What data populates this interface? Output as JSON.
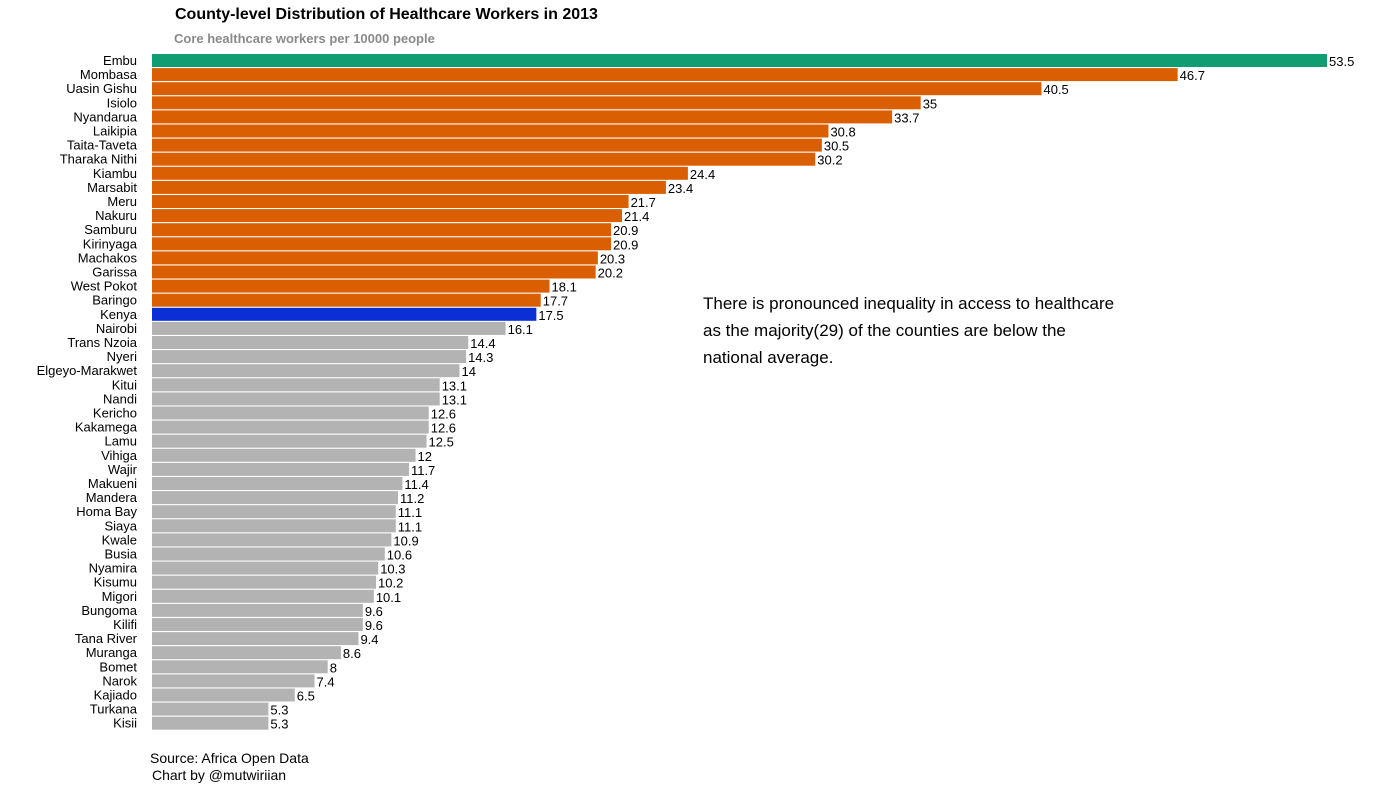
{
  "chart_data": {
    "type": "bar",
    "orientation": "horizontal",
    "title": "County-level Distribution of Healthcare Workers in 2013",
    "subtitle": "Core healthcare workers per 10000 people",
    "xlabel": "",
    "ylabel": "",
    "grid": false,
    "xlim": [
      0,
      53.5
    ],
    "categories": [
      "Embu",
      "Mombasa",
      "Uasin Gishu",
      "Isiolo",
      "Nyandarua",
      "Laikipia",
      "Taita-Taveta",
      "Tharaka Nithi",
      "Kiambu",
      "Marsabit",
      "Meru",
      "Nakuru",
      "Samburu",
      "Kirinyaga",
      "Machakos",
      "Garissa",
      "West Pokot",
      "Baringo",
      "Kenya",
      "Nairobi",
      "Trans Nzoia",
      "Nyeri",
      "Elgeyo-Marakwet",
      "Kitui",
      "Nandi",
      "Kericho",
      "Kakamega",
      "Lamu",
      "Vihiga",
      "Wajir",
      "Makueni",
      "Mandera",
      "Homa Bay",
      "Siaya",
      "Kwale",
      "Busia",
      "Nyamira",
      "Kisumu",
      "Migori",
      "Bungoma",
      "Kilifi",
      "Tana River",
      "Muranga",
      "Bomet",
      "Narok",
      "Kajiado",
      "Turkana",
      "Kisii"
    ],
    "values": [
      53.5,
      46.7,
      40.5,
      35,
      33.7,
      30.8,
      30.5,
      30.2,
      24.4,
      23.4,
      21.7,
      21.4,
      20.9,
      20.9,
      20.3,
      20.2,
      18.1,
      17.7,
      17.5,
      16.1,
      14.4,
      14.3,
      14,
      13.1,
      13.1,
      12.6,
      12.6,
      12.5,
      12,
      11.7,
      11.4,
      11.2,
      11.1,
      11.1,
      10.9,
      10.6,
      10.3,
      10.2,
      10.1,
      9.6,
      9.6,
      9.4,
      8.6,
      8,
      7.4,
      6.5,
      5.3,
      5.3
    ],
    "value_labels": [
      "53.5",
      "46.7",
      "40.5",
      "35",
      "33.7",
      "30.8",
      "30.5",
      "30.2",
      "24.4",
      "23.4",
      "21.7",
      "21.4",
      "20.9",
      "20.9",
      "20.3",
      "20.2",
      "18.1",
      "17.7",
      "17.5",
      "16.1",
      "14.4",
      "14.3",
      "14",
      "13.1",
      "13.1",
      "12.6",
      "12.6",
      "12.5",
      "12",
      "11.7",
      "11.4",
      "11.2",
      "11.1",
      "11.1",
      "10.9",
      "10.6",
      "10.3",
      "10.2",
      "10.1",
      "9.6",
      "9.6",
      "9.4",
      "8.6",
      "8",
      "7.4",
      "6.5",
      "5.3",
      "5.3"
    ],
    "colors": {
      "top": "#0f9d72",
      "above_average": "#d95f02",
      "national": "#0a2fd6",
      "below_average": "#b3b3b3"
    },
    "highlight_top": "Embu",
    "national_category": "Kenya",
    "annotation": "There is pronounced inequality in access to healthcare as the majority(29) of the counties are below the national average."
  },
  "footer": {
    "source": "Source: Africa Open Data",
    "credit": "Chart by @mutwiriian"
  }
}
